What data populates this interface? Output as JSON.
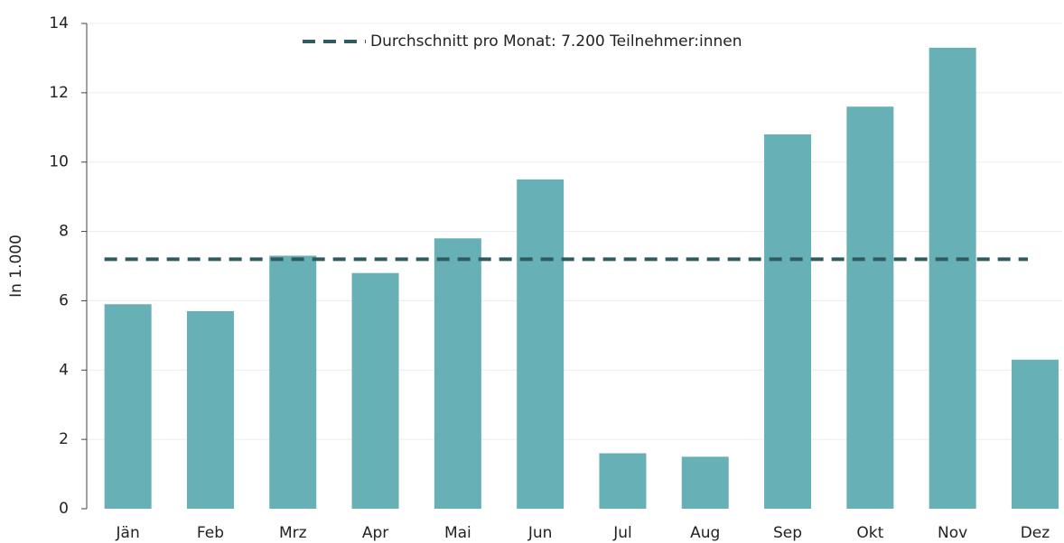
{
  "chart_data": {
    "type": "bar",
    "y_label": "In 1.000",
    "categories": [
      "Jän",
      "Feb",
      "Mrz",
      "Apr",
      "Mai",
      "Jun",
      "Jul",
      "Aug",
      "Sep",
      "Okt",
      "Nov",
      "Dez"
    ],
    "values": [
      5.9,
      5.7,
      7.3,
      6.8,
      7.8,
      9.5,
      1.6,
      1.5,
      10.8,
      11.6,
      13.3,
      4.3
    ],
    "color": "#67b1b6",
    "average": {
      "label": "Durchschnitt pro Monat: 7.200 Teilnehmer:innen",
      "value": 7.2,
      "color": "#2f5b5f"
    },
    "ylim": [
      0,
      14
    ],
    "yticks": [
      0,
      2,
      4,
      6,
      8,
      10,
      12,
      14
    ],
    "grid": true
  }
}
